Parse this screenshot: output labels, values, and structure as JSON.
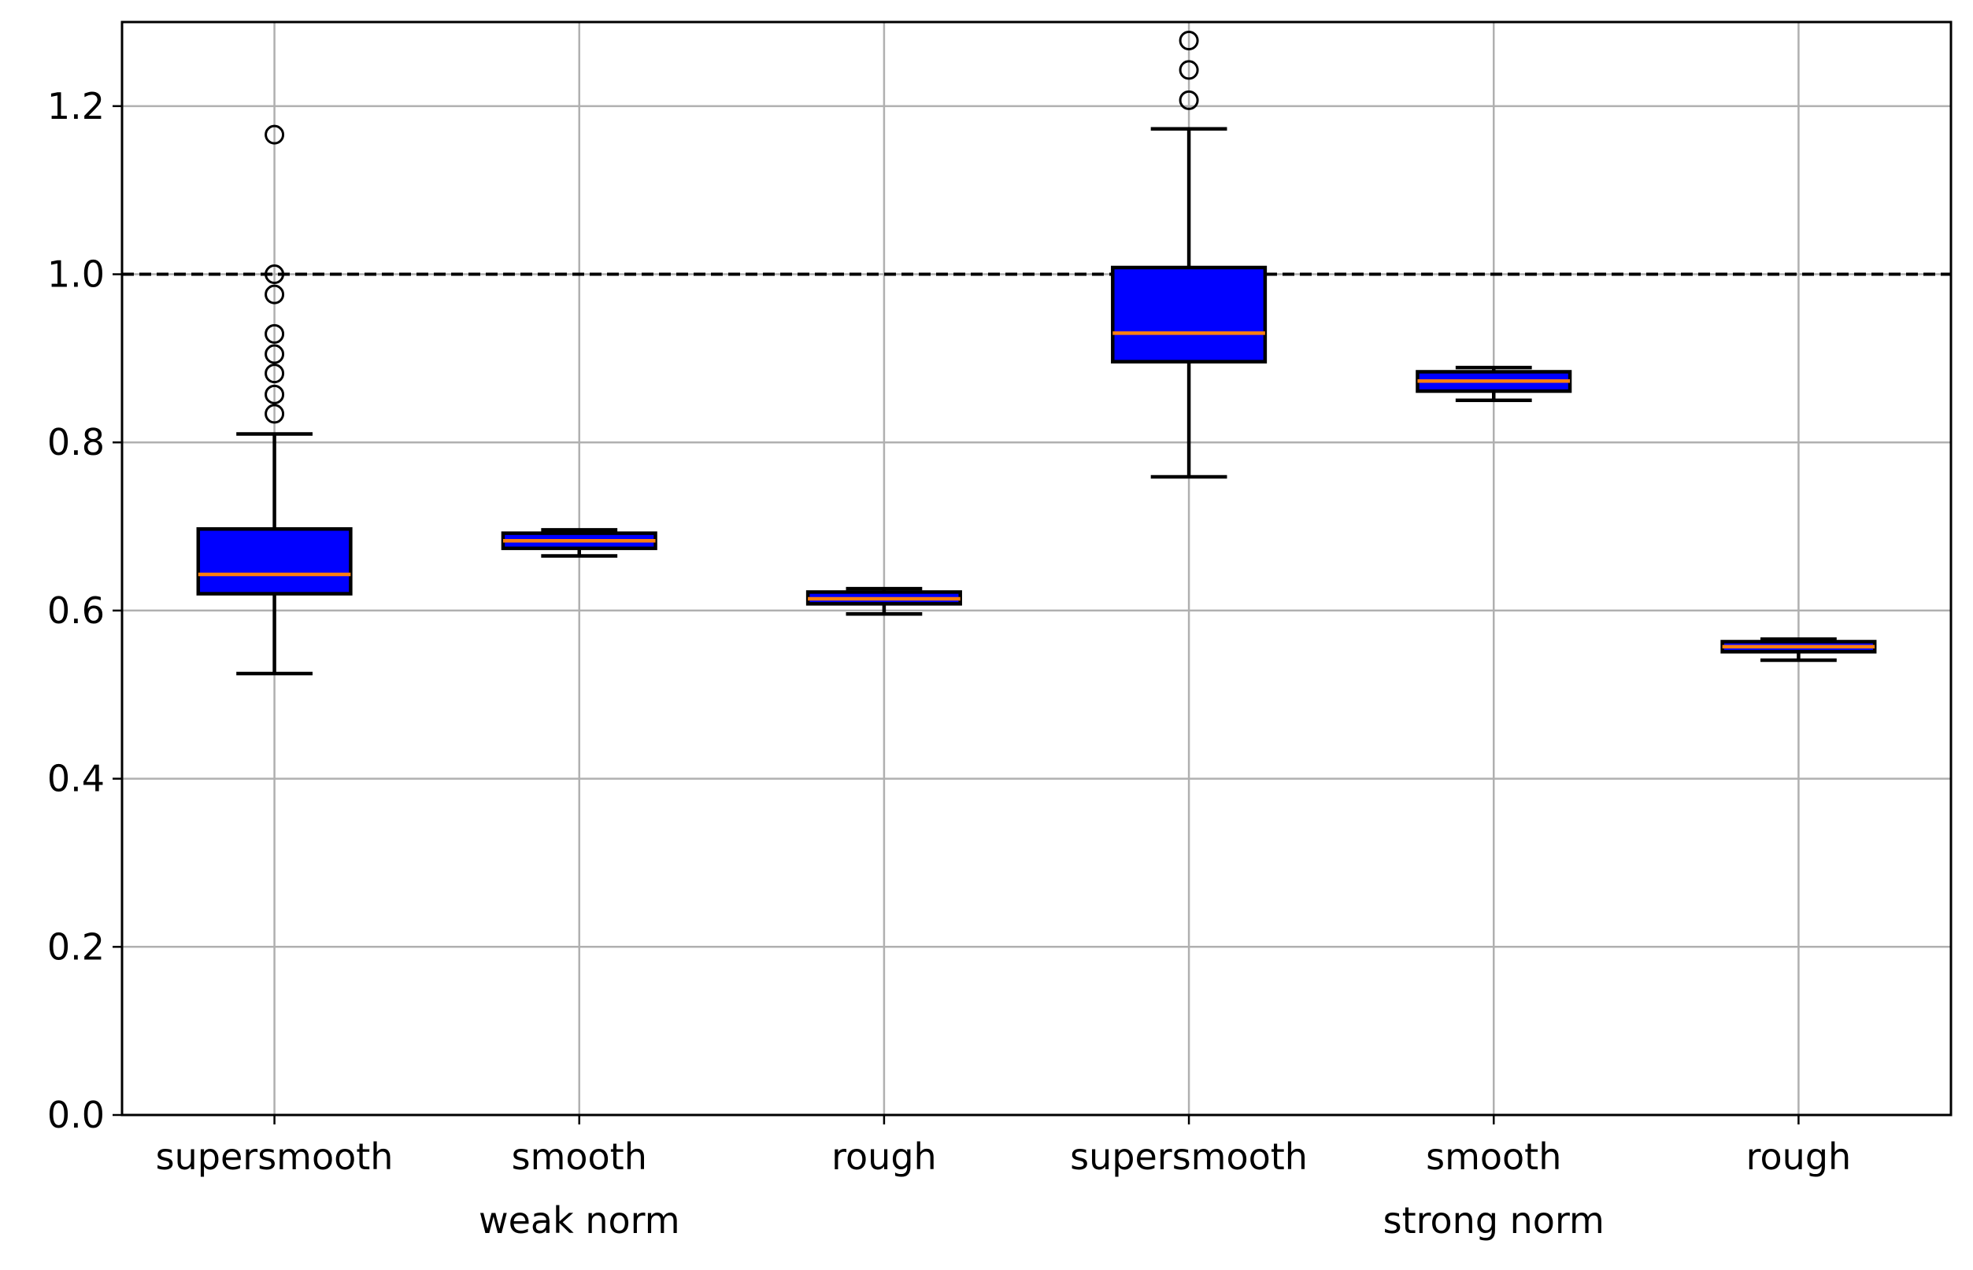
{
  "chart_data": {
    "type": "box",
    "title": "",
    "xlabel": "",
    "ylabel": "",
    "ylim": [
      0.0,
      1.3
    ],
    "yticks": [
      0.0,
      0.2,
      0.4,
      0.6,
      0.8,
      1.0,
      1.2
    ],
    "ytick_labels": [
      "0.0",
      "0.2",
      "0.4",
      "0.6",
      "0.8",
      "1.0",
      "1.2"
    ],
    "grid": true,
    "reference_line": {
      "y": 1.0,
      "style": "dashed",
      "color": "#000000"
    },
    "categories": [
      "supersmooth",
      "smooth",
      "rough",
      "supersmooth",
      "smooth",
      "rough"
    ],
    "group_labels": [
      {
        "label": "weak norm",
        "under_category_index": 1
      },
      {
        "label": "strong norm",
        "under_category_index": 4
      }
    ],
    "colors": {
      "box_fill": "#0000ff",
      "box_edge": "#000000",
      "median": "#ff7f0e",
      "grid": "#b0b0b0"
    },
    "boxes": [
      {
        "name": "supersmooth",
        "group": "weak norm",
        "whisker_low": 0.525,
        "q1": 0.62,
        "median": 0.643,
        "q3": 0.697,
        "whisker_high": 0.81,
        "outliers": [
          0.834,
          0.857,
          0.882,
          0.905,
          0.929,
          0.976,
          1.0,
          1.166
        ]
      },
      {
        "name": "smooth",
        "group": "weak norm",
        "whisker_low": 0.665,
        "q1": 0.674,
        "median": 0.683,
        "q3": 0.692,
        "whisker_high": 0.696,
        "outliers": []
      },
      {
        "name": "rough",
        "group": "weak norm",
        "whisker_low": 0.596,
        "q1": 0.608,
        "median": 0.614,
        "q3": 0.622,
        "whisker_high": 0.626,
        "outliers": []
      },
      {
        "name": "supersmooth",
        "group": "strong norm",
        "whisker_low": 0.759,
        "q1": 0.896,
        "median": 0.93,
        "q3": 1.008,
        "whisker_high": 1.173,
        "outliers": [
          1.207,
          1.243,
          1.278
        ]
      },
      {
        "name": "smooth",
        "group": "strong norm",
        "whisker_low": 0.85,
        "q1": 0.861,
        "median": 0.873,
        "q3": 0.884,
        "whisker_high": 0.889,
        "outliers": []
      },
      {
        "name": "rough",
        "group": "strong norm",
        "whisker_low": 0.541,
        "q1": 0.551,
        "median": 0.557,
        "q3": 0.563,
        "whisker_high": 0.566,
        "outliers": []
      }
    ]
  }
}
